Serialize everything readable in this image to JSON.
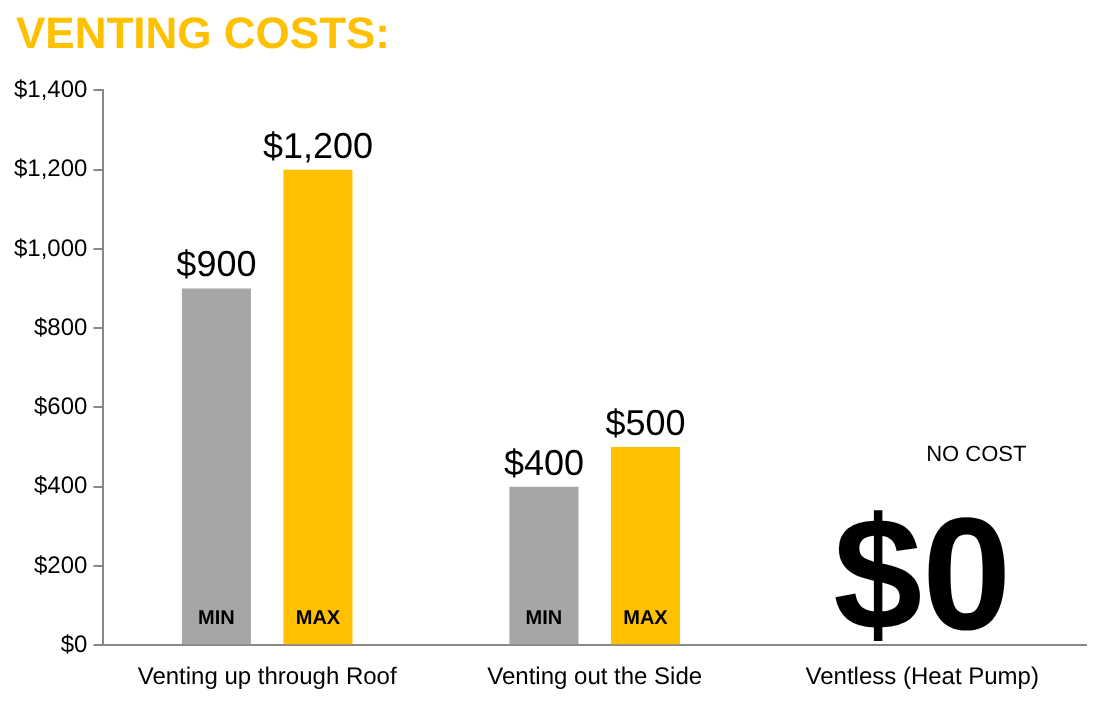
{
  "chart_data": {
    "type": "bar",
    "title": "VENTING COSTS:",
    "categories": [
      "Venting up through Roof",
      "Venting out the Side",
      "Ventless (Heat Pump)"
    ],
    "series": [
      {
        "name": "MIN",
        "color": "#a6a6a6",
        "values": [
          900,
          400,
          0
        ],
        "value_labels": [
          "$900",
          "$400",
          null
        ]
      },
      {
        "name": "MAX",
        "color": "#ffc000",
        "values": [
          1200,
          500,
          0
        ],
        "value_labels": [
          "$1,200",
          "$500",
          null
        ]
      }
    ],
    "ylim": [
      0,
      1400
    ],
    "yticks": [
      {
        "value": 0,
        "label": "$0"
      },
      {
        "value": 200,
        "label": "$200"
      },
      {
        "value": 400,
        "label": "$400"
      },
      {
        "value": 600,
        "label": "$600"
      },
      {
        "value": 800,
        "label": "$800"
      },
      {
        "value": 1000,
        "label": "$1,000"
      },
      {
        "value": 1200,
        "label": "$1,200"
      },
      {
        "value": 1400,
        "label": "$1,400"
      }
    ],
    "annotations": [
      {
        "text": "$0",
        "x": "Ventless (Heat Pump)",
        "y": 0
      },
      "NO COST"
    ],
    "grid": false,
    "legend": false
  }
}
